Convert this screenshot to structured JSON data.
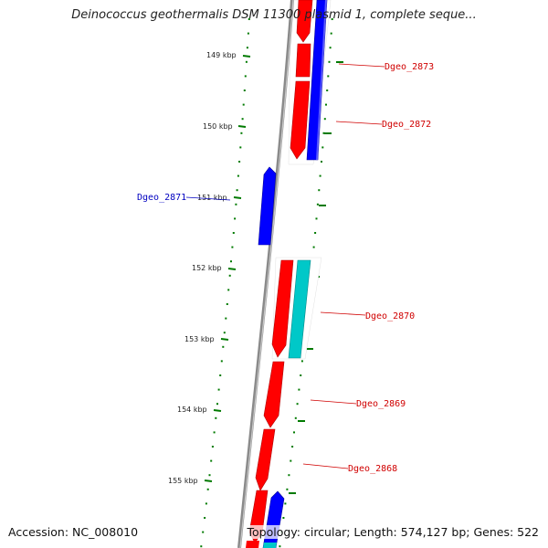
{
  "title": "Deinococcus geothermalis DSM 11300 plasmid 1, complete seque...",
  "footer": {
    "accession": "Accession: NC_008010",
    "summary": "Topology: circular; Length: 574,127 bp; Genes: 522"
  },
  "colors": {
    "forward_gene": "#ff0000",
    "reverse_gene": "#0000ff",
    "other_gene": "#00c8c8",
    "tick": "#007a00",
    "backbone": "#808080",
    "label_forward": "#d00000",
    "label_reverse": "#0000c0"
  },
  "scale": {
    "ticks": [
      {
        "label": "149 kbp"
      },
      {
        "label": "150 kbp"
      },
      {
        "label": "151 kbp"
      },
      {
        "label": "152 kbp"
      },
      {
        "label": "153 kbp"
      },
      {
        "label": "154 kbp"
      },
      {
        "label": "155 kbp"
      }
    ]
  },
  "genes": [
    {
      "id": "Dgeo_2873",
      "label": "Dgeo_2873",
      "strand": "forward",
      "color_key": "forward_gene"
    },
    {
      "id": "Dgeo_2873_rev",
      "label": "",
      "strand": "reverse",
      "color_key": "reverse_gene"
    },
    {
      "id": "Dgeo_2872",
      "label": "Dgeo_2872",
      "strand": "forward",
      "color_key": "forward_gene"
    },
    {
      "id": "Dgeo_2871",
      "label": "Dgeo_2871",
      "strand": "reverse",
      "color_key": "reverse_gene"
    },
    {
      "id": "Dgeo_2870",
      "label": "Dgeo_2870",
      "strand": "forward",
      "color_key": "forward_gene"
    },
    {
      "id": "Dgeo_2870_alt",
      "label": "",
      "strand": "other",
      "color_key": "other_gene"
    },
    {
      "id": "Dgeo_2869",
      "label": "Dgeo_2869",
      "strand": "forward",
      "color_key": "forward_gene"
    },
    {
      "id": "Dgeo_2868",
      "label": "Dgeo_2868",
      "strand": "forward",
      "color_key": "forward_gene"
    }
  ]
}
